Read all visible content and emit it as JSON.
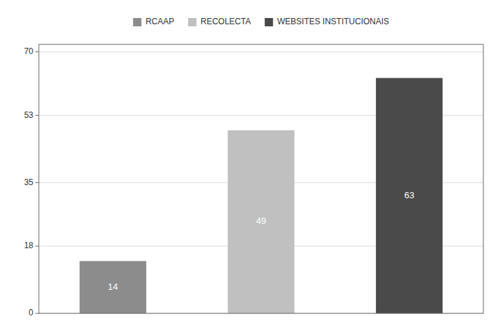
{
  "chart_data": {
    "type": "bar",
    "categories": [
      "RCAAP",
      "RECOLECTA",
      "WEBSITES INSTITUCIONAIS"
    ],
    "values": [
      14,
      49,
      63
    ],
    "colors": [
      "#8c8c8c",
      "#c0c0c0",
      "#4a4a4a"
    ],
    "ylim": [
      0,
      72
    ],
    "yticks": [
      0,
      18,
      35,
      53,
      70
    ],
    "grid": true,
    "legend": "top",
    "data_labels": true,
    "tick_labels": "y"
  }
}
